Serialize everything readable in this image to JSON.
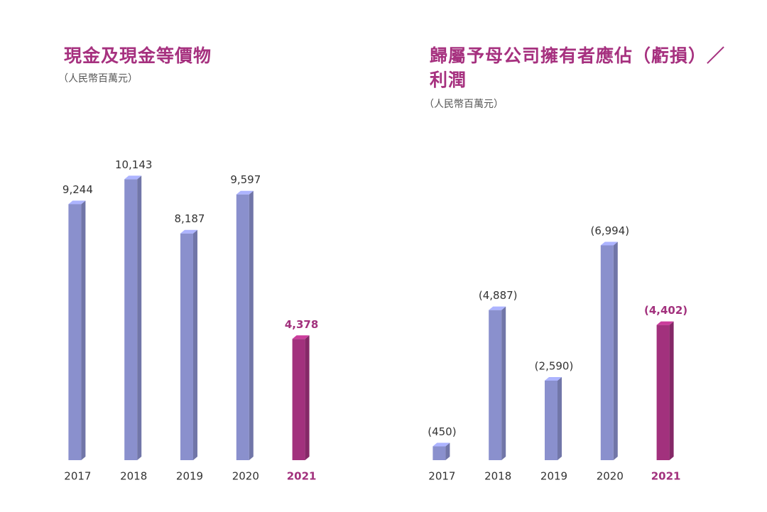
{
  "chart_data": [
    {
      "type": "bar",
      "title": "現金及現金等價物",
      "subtitle": "（人民幣百萬元）",
      "categories": [
        "2017",
        "2018",
        "2019",
        "2020",
        "2021"
      ],
      "values": [
        9244,
        10143,
        8187,
        9597,
        4378
      ],
      "value_labels": [
        "9,244",
        "10,143",
        "8,187",
        "9,597",
        "4,378"
      ],
      "colors": [
        "#8a90cd",
        "#8a90cd",
        "#8a90cd",
        "#8a90cd",
        "#a2317d"
      ],
      "ylim": [
        0,
        11000
      ]
    },
    {
      "type": "bar",
      "title": "歸屬予母公司擁有者應佔（虧損）／利潤",
      "subtitle": "（人民幣百萬元）",
      "categories": [
        "2017",
        "2018",
        "2019",
        "2020",
        "2021"
      ],
      "values": [
        -450,
        -4887,
        -2590,
        -6994,
        -4402
      ],
      "value_labels": [
        "(450)",
        "(4,887)",
        "(2,590)",
        "(6,994)",
        "(4,402)"
      ],
      "colors": [
        "#8a90cd",
        "#8a90cd",
        "#8a90cd",
        "#8a90cd",
        "#a2317d"
      ],
      "ylim": [
        0,
        -8000
      ]
    }
  ]
}
